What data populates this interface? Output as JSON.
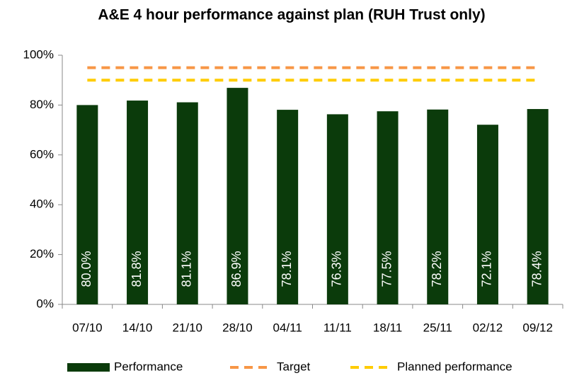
{
  "chart_data": {
    "type": "bar",
    "title": "A&E 4 hour performance against plan (RUH Trust only)",
    "categories": [
      "07/10",
      "14/10",
      "21/10",
      "28/10",
      "04/11",
      "11/11",
      "18/11",
      "25/11",
      "02/12",
      "09/12"
    ],
    "series": [
      {
        "name": "Performance",
        "type": "bar",
        "color": "#0b3b0b",
        "values": [
          80.0,
          81.8,
          81.1,
          86.9,
          78.1,
          76.3,
          77.5,
          78.2,
          72.1,
          78.4
        ],
        "value_labels": [
          "80.0%",
          "81.8%",
          "81.1%",
          "86.9%",
          "78.1%",
          "76.3%",
          "77.5%",
          "78.2%",
          "72.1%",
          "78.4%"
        ]
      },
      {
        "name": "Target",
        "type": "line",
        "color": "#f79646",
        "values": [
          95,
          95,
          95,
          95,
          95,
          95,
          95,
          95,
          95,
          95
        ]
      },
      {
        "name": "Planned performance",
        "type": "line",
        "color": "#ffcc00",
        "values": [
          90,
          90,
          90,
          90,
          90,
          90,
          90,
          90,
          90,
          90
        ]
      }
    ],
    "ylim": [
      0,
      100
    ],
    "yticks": [
      {
        "value": 0,
        "label": "0%"
      },
      {
        "value": 20,
        "label": "20%"
      },
      {
        "value": 40,
        "label": "40%"
      },
      {
        "value": 60,
        "label": "60%"
      },
      {
        "value": 80,
        "label": "80%"
      },
      {
        "value": 100,
        "label": "100%"
      }
    ],
    "legend": "bottom"
  }
}
